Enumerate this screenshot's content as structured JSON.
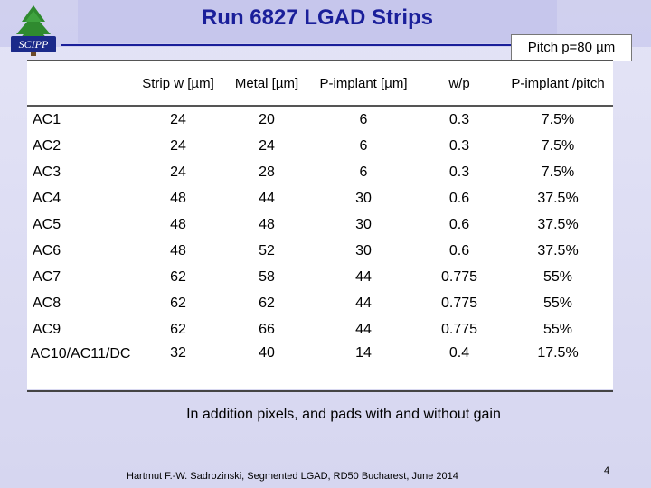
{
  "header": {
    "title": "Run 6827 LGAD Strips",
    "logo_text": "SCIPP",
    "pitch_label": "Pitch p=80 µm"
  },
  "table": {
    "headers": [
      "",
      "Strip w [µm]",
      "Metal [µm]",
      "P-implant [µm]",
      "w/p",
      "P-implant /pitch"
    ],
    "rows": [
      [
        "AC1",
        "24",
        "20",
        "6",
        "0.3",
        "7.5%"
      ],
      [
        "AC2",
        "24",
        "24",
        "6",
        "0.3",
        "7.5%"
      ],
      [
        "AC3",
        "24",
        "28",
        "6",
        "0.3",
        "7.5%"
      ],
      [
        "AC4",
        "48",
        "44",
        "30",
        "0.6",
        "37.5%"
      ],
      [
        "AC5",
        "48",
        "48",
        "30",
        "0.6",
        "37.5%"
      ],
      [
        "AC6",
        "48",
        "52",
        "30",
        "0.6",
        "37.5%"
      ],
      [
        "AC7",
        "62",
        "58",
        "44",
        "0.775",
        "55%"
      ],
      [
        "AC8",
        "62",
        "62",
        "44",
        "0.775",
        "55%"
      ],
      [
        "AC9",
        "62",
        "66",
        "44",
        "0.775",
        "55%"
      ],
      [
        "AC10/AC11/DC",
        "32",
        "40",
        "14",
        "0.4",
        "17.5%"
      ]
    ]
  },
  "note": "In addition pixels, and pads with and without gain",
  "footer": "Hartmut F.-W. Sadrozinski, Segmented LGAD, RD50 Bucharest, June 2014",
  "page_number": "4",
  "colors": {
    "title": "#1a1f9a",
    "background": "#d6d6f0",
    "logo_tree": "#2f8a2f"
  }
}
